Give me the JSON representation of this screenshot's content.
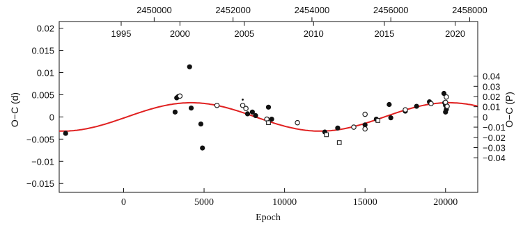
{
  "chart_data": {
    "type": "scatter",
    "title": "",
    "xlabel": "Epoch",
    "ylabel": "O−C (d)",
    "ylabel_right": "O−C (P)",
    "xlim": [
      -4000,
      22000
    ],
    "ylim": [
      -0.017,
      0.0215
    ],
    "x_ticks": [
      0,
      5000,
      10000,
      15000,
      20000
    ],
    "x_tick_labels": [
      "0",
      "5000",
      "10000",
      "15000",
      "20000"
    ],
    "y_ticks": [
      -0.015,
      -0.01,
      -0.005,
      0,
      0.005,
      0.01,
      0.015,
      0.02
    ],
    "y_tick_labels": [
      "−0.015",
      "−0.01",
      "−0.005",
      "0",
      "0.005",
      "0.01",
      "0.015",
      "0.02"
    ],
    "y2_ticks": [
      -0.0092,
      -0.0069,
      -0.0046,
      -0.0023,
      0,
      0.0023,
      0.0046,
      0.0069,
      0.0092
    ],
    "y2_tick_labels": [
      "−0.04",
      "−0.03",
      "−0.02",
      "−0.01",
      "0",
      "0.01",
      "0.02",
      "0.03",
      "0.04"
    ],
    "top_year_ticks": [
      {
        "epoch": -150,
        "label": "1995"
      },
      {
        "epoch": 3500,
        "label": "2000"
      },
      {
        "epoch": 7500,
        "label": "2005"
      },
      {
        "epoch": 11800,
        "label": "2010"
      },
      {
        "epoch": 16200,
        "label": "2015"
      },
      {
        "epoch": 20600,
        "label": "2020"
      }
    ],
    "top_jd_ticks": [
      {
        "epoch": 1900,
        "label": "2450000"
      },
      {
        "epoch": 6800,
        "label": "2452000"
      },
      {
        "epoch": 11700,
        "label": "2454000"
      },
      {
        "epoch": 16600,
        "label": "2456000"
      },
      {
        "epoch": 21500,
        "label": "2458000"
      }
    ],
    "fit_curve": {
      "model": "sinusoid",
      "amplitude": 0.0032,
      "period": 16000,
      "peak_epoch": 4200,
      "color": "#e02020"
    },
    "series": [
      {
        "marker": "filled-circle",
        "points": [
          [
            -3600,
            -0.0037
          ],
          [
            3200,
            0.0011
          ],
          [
            3300,
            0.0043
          ],
          [
            3400,
            0.0046
          ],
          [
            4100,
            0.0113
          ],
          [
            4200,
            0.002
          ],
          [
            4800,
            -0.0016
          ],
          [
            4900,
            -0.007
          ],
          [
            7700,
            0.0007
          ],
          [
            8000,
            0.0011
          ],
          [
            8200,
            0.0003
          ],
          [
            9000,
            0.0022
          ],
          [
            9200,
            -0.0005
          ],
          [
            12500,
            -0.0034
          ],
          [
            13300,
            -0.0025
          ],
          [
            15000,
            -0.0018
          ],
          [
            15700,
            -0.0005
          ],
          [
            16500,
            0.0028
          ],
          [
            16600,
            -0.0002
          ],
          [
            17500,
            0.0013
          ],
          [
            18200,
            0.0024
          ],
          [
            19000,
            0.0034
          ],
          [
            19900,
            0.0053
          ],
          [
            19950,
            0.0032
          ],
          [
            20000,
            0.0026
          ],
          [
            20050,
            0.0017
          ],
          [
            20000,
            0.0011
          ]
        ]
      },
      {
        "marker": "open-circle",
        "points": [
          [
            3500,
            0.0047
          ],
          [
            5800,
            0.0026
          ],
          [
            7400,
            0.0026
          ],
          [
            7600,
            0.0019
          ],
          [
            8900,
            -0.0005
          ],
          [
            10800,
            -0.0013
          ],
          [
            14300,
            -0.0023
          ],
          [
            15000,
            0.0006
          ],
          [
            15000,
            -0.0027
          ],
          [
            17500,
            0.0016
          ],
          [
            19100,
            0.003
          ],
          [
            20050,
            0.0045
          ],
          [
            20000,
            0.0033
          ],
          [
            20100,
            0.0024
          ]
        ]
      },
      {
        "marker": "open-square",
        "points": [
          [
            9000,
            -0.0013
          ],
          [
            12600,
            -0.004
          ],
          [
            13400,
            -0.0058
          ],
          [
            15800,
            -0.0008
          ]
        ]
      },
      {
        "marker": "small-dot",
        "points": [
          [
            7400,
            0.0039
          ]
        ]
      }
    ],
    "grid": false,
    "legend": "none"
  }
}
